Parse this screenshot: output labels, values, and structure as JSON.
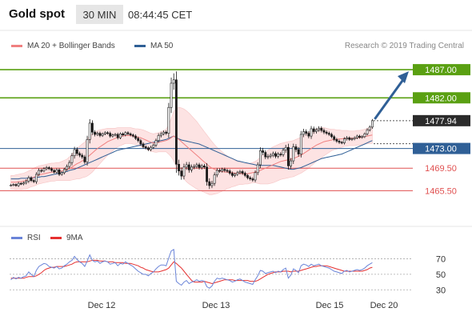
{
  "header": {
    "title": "Gold spot",
    "timeframe": "30 MIN",
    "time": "08:44:45 CET"
  },
  "legend": {
    "ma_bb": "MA 20 + Bollinger Bands",
    "ma50": "MA 50",
    "credit": "Research © 2019 Trading Central"
  },
  "rsi_legend": {
    "rsi": "RSI",
    "ma": "9MA"
  },
  "colors": {
    "candle": "#1a1a1a",
    "bollinger_fill": "#fde3e3",
    "ma20": "#f08080",
    "ma50": "#2f5f96",
    "resistance": "#5aa012",
    "support": "#e05050",
    "pivot": "#2f5f96",
    "last_price": "#2b2b2b",
    "rsi": "#6a84d8",
    "rsi_ma": "#e53030",
    "arrow": "#2f5f96"
  },
  "chart_data": [
    {
      "type": "candlestick",
      "title": "Gold spot",
      "ylim": [
        1461.0,
        1490.0
      ],
      "x_tick_labels": [
        "Dec 12",
        "Dec 13",
        "Dec 15",
        "Dec 20"
      ],
      "close": [
        1466.5,
        1466.6,
        1466.4,
        1466.8,
        1466.7,
        1466.9,
        1467.2,
        1467.8,
        1467.3,
        1467.1,
        1468.4,
        1469.1,
        1469.0,
        1469.4,
        1469.6,
        1469.4,
        1469.1,
        1468.8,
        1469.2,
        1468.4,
        1468.7,
        1469.3,
        1469.8,
        1470.5,
        1471.7,
        1472.8,
        1472.1,
        1471.8,
        1471.5,
        1470.6,
        1474.6,
        1477.5,
        1475.9,
        1475.5,
        1475.7,
        1475.3,
        1475.6,
        1475.8,
        1475.7,
        1475.2,
        1475.4,
        1475.5,
        1474.9,
        1475.6,
        1475.4,
        1475.8,
        1475.6,
        1475.4,
        1475.2,
        1474.8,
        1474.4,
        1473.8,
        1473.3,
        1473.1,
        1472.8,
        1473.2,
        1473.6,
        1474.4,
        1475.3,
        1475.6,
        1475.9,
        1475.7,
        1480.3,
        1484.6,
        1485.2,
        1470.2,
        1469.0,
        1468.1,
        1469.7,
        1470.1,
        1469.2,
        1469.7,
        1469.8,
        1470.1,
        1469.6,
        1469.9,
        1469.7,
        1467.1,
        1466.4,
        1466.8,
        1468.3,
        1469.1,
        1469.0,
        1469.3,
        1469.1,
        1469.0,
        1468.6,
        1468.2,
        1468.4,
        1468.7,
        1468.9,
        1468.6,
        1468.2,
        1467.8,
        1467.6,
        1467.4,
        1468.7,
        1470.1,
        1472.6,
        1472.3,
        1471.5,
        1471.6,
        1471.8,
        1472.1,
        1471.6,
        1472.0,
        1471.9,
        1472.7,
        1473.2,
        1469.9,
        1470.8,
        1473.3,
        1472.8,
        1472.0,
        1475.5,
        1476.0,
        1475.7,
        1475.2,
        1476.5,
        1476.0,
        1476.3,
        1476.6,
        1476.2,
        1475.9,
        1475.7,
        1475.5,
        1475.1,
        1474.6,
        1474.3,
        1474.1,
        1474.0,
        1474.7,
        1474.9,
        1474.6,
        1474.7,
        1474.9,
        1475.2,
        1475.0,
        1475.1,
        1475.6,
        1476.3,
        1476.8,
        1477.94
      ],
      "spread": [
        0.4,
        0.4,
        0.4,
        0.5,
        0.4,
        0.5,
        0.6,
        0.7,
        0.5,
        0.5,
        0.8,
        0.7,
        0.6,
        0.5,
        0.6,
        0.5,
        0.5,
        0.5,
        0.6,
        0.6,
        0.5,
        0.6,
        0.7,
        0.8,
        1.0,
        1.0,
        0.8,
        0.7,
        0.7,
        0.7,
        1.3,
        1.4,
        1.0,
        0.7,
        0.6,
        0.6,
        0.5,
        0.5,
        0.5,
        0.6,
        0.5,
        0.5,
        0.6,
        0.5,
        0.5,
        0.5,
        0.5,
        0.5,
        0.5,
        0.6,
        0.6,
        0.6,
        0.6,
        0.5,
        0.5,
        0.6,
        0.6,
        0.7,
        0.8,
        0.7,
        0.6,
        0.6,
        1.6,
        2.0,
        2.3,
        3.0,
        1.6,
        1.3,
        1.2,
        1.0,
        1.0,
        0.9,
        0.8,
        0.7,
        0.7,
        0.7,
        0.7,
        1.4,
        1.2,
        0.9,
        0.9,
        0.8,
        0.7,
        0.6,
        0.6,
        0.6,
        0.6,
        0.6,
        0.6,
        0.6,
        0.6,
        0.6,
        0.6,
        0.6,
        0.6,
        0.6,
        0.8,
        0.9,
        1.2,
        1.0,
        0.8,
        0.8,
        0.7,
        0.7,
        0.7,
        0.7,
        0.7,
        0.8,
        0.9,
        1.3,
        1.0,
        1.1,
        0.9,
        0.9,
        1.2,
        1.0,
        0.8,
        0.8,
        1.0,
        0.8,
        0.7,
        0.7,
        0.7,
        0.7,
        0.6,
        0.6,
        0.6,
        0.6,
        0.6,
        0.6,
        0.5,
        0.6,
        0.6,
        0.5,
        0.5,
        0.5,
        0.5,
        0.5,
        0.5,
        0.5,
        0.6,
        0.6,
        0.6
      ],
      "ma20": [
        1467.0,
        1467.0,
        1467.0,
        1467.1,
        1467.1,
        1467.2,
        1467.3,
        1467.5,
        1467.7,
        1467.9,
        1468.1,
        1468.3,
        1468.4,
        1468.5,
        1468.6,
        1468.7,
        1468.8,
        1468.8,
        1468.9,
        1468.9,
        1469.0,
        1469.1,
        1469.2,
        1469.4,
        1469.7,
        1470.0,
        1470.3,
        1470.5,
        1470.8,
        1471.0,
        1471.4,
        1471.8,
        1472.2,
        1472.6,
        1473.0,
        1473.3,
        1473.6,
        1473.9,
        1474.2,
        1474.4,
        1474.6,
        1474.8,
        1475.0,
        1475.1,
        1475.2,
        1475.3,
        1475.3,
        1475.3,
        1475.2,
        1475.1,
        1475.0,
        1474.9,
        1474.7,
        1474.5,
        1474.3,
        1474.1,
        1474.0,
        1474.0,
        1474.1,
        1474.2,
        1474.3,
        1474.4,
        1474.6,
        1474.9,
        1475.2,
        1474.9,
        1474.6,
        1474.2,
        1473.8,
        1473.4,
        1473.0,
        1472.6,
        1472.2,
        1471.8,
        1471.4,
        1471.0,
        1470.6,
        1470.2,
        1469.8,
        1469.5,
        1469.3,
        1469.1,
        1469.0,
        1468.9,
        1468.8,
        1468.8,
        1468.7,
        1468.7,
        1468.6,
        1468.6,
        1468.6,
        1468.5,
        1468.5,
        1468.5,
        1468.6,
        1468.7,
        1468.8,
        1468.9,
        1469.1,
        1469.3,
        1469.5,
        1469.7,
        1469.9,
        1470.1,
        1470.3,
        1470.5,
        1470.7,
        1470.8,
        1470.9,
        1471.0,
        1471.1,
        1471.2,
        1471.4,
        1471.6,
        1471.8,
        1472.1,
        1472.4,
        1472.7,
        1473.0,
        1473.3,
        1473.6,
        1473.8,
        1474.0,
        1474.2,
        1474.3,
        1474.4,
        1474.5,
        1474.6,
        1474.6,
        1474.7,
        1474.7,
        1474.8,
        1474.8,
        1474.8,
        1474.8,
        1474.8,
        1474.9,
        1474.9,
        1475.0,
        1475.1,
        1475.2,
        1475.3,
        1475.4
      ],
      "bb_width": [
        1.2,
        1.2,
        1.3,
        1.3,
        1.4,
        1.4,
        1.5,
        1.5,
        1.5,
        1.6,
        1.6,
        1.6,
        1.6,
        1.6,
        1.6,
        1.6,
        1.6,
        1.6,
        1.6,
        1.6,
        1.7,
        1.8,
        1.9,
        2.1,
        2.3,
        2.5,
        2.7,
        2.9,
        3.0,
        3.1,
        3.3,
        3.4,
        3.4,
        3.3,
        3.2,
        3.0,
        2.8,
        2.6,
        2.4,
        2.2,
        2.0,
        1.8,
        1.7,
        1.6,
        1.5,
        1.4,
        1.4,
        1.4,
        1.4,
        1.4,
        1.5,
        1.5,
        1.6,
        1.6,
        1.6,
        1.6,
        1.6,
        1.7,
        1.7,
        1.8,
        1.9,
        2.0,
        2.6,
        3.4,
        4.4,
        5.2,
        5.7,
        6.0,
        6.2,
        6.3,
        6.3,
        6.2,
        6.1,
        6.0,
        5.8,
        5.6,
        5.4,
        5.2,
        5.0,
        4.7,
        4.4,
        4.1,
        3.8,
        3.5,
        3.2,
        2.9,
        2.7,
        2.5,
        2.3,
        2.1,
        2.0,
        1.9,
        1.8,
        1.8,
        1.8,
        1.8,
        1.9,
        2.1,
        2.4,
        2.6,
        2.8,
        3.0,
        3.1,
        3.2,
        3.2,
        3.2,
        3.2,
        3.2,
        3.2,
        3.2,
        3.2,
        3.2,
        3.2,
        3.2,
        3.2,
        3.2,
        3.2,
        3.2,
        3.1,
        3.0,
        2.9,
        2.8,
        2.7,
        2.5,
        2.3,
        2.1,
        1.9,
        1.8,
        1.7,
        1.6,
        1.5,
        1.4,
        1.4,
        1.3,
        1.3,
        1.3,
        1.3,
        1.3,
        1.3,
        1.3,
        1.4,
        1.4,
        1.5
      ],
      "ma50": [
        1467.6,
        1467.6,
        1467.6,
        1467.6,
        1467.7,
        1467.7,
        1467.7,
        1467.8,
        1467.8,
        1467.8,
        1467.9,
        1467.9,
        1468.0,
        1468.0,
        1468.1,
        1468.2,
        1468.3,
        1468.4,
        1468.5,
        1468.6,
        1468.7,
        1468.8,
        1468.9,
        1469.1,
        1469.2,
        1469.3,
        1469.5,
        1469.7,
        1469.9,
        1470.1,
        1470.3,
        1470.5,
        1470.7,
        1470.9,
        1471.1,
        1471.3,
        1471.5,
        1471.7,
        1471.9,
        1472.1,
        1472.3,
        1472.5,
        1472.7,
        1472.8,
        1472.9,
        1473.0,
        1473.1,
        1473.2,
        1473.3,
        1473.4,
        1473.5,
        1473.6,
        1473.7,
        1473.8,
        1473.9,
        1474.0,
        1474.1,
        1474.2,
        1474.3,
        1474.4,
        1474.5,
        1474.6,
        1474.8,
        1475.0,
        1475.2,
        1474.9,
        1474.7,
        1474.5,
        1474.4,
        1474.3,
        1474.2,
        1474.1,
        1474.0,
        1473.9,
        1473.8,
        1473.6,
        1473.4,
        1473.2,
        1473.0,
        1472.8,
        1472.6,
        1472.4,
        1472.2,
        1472.0,
        1471.8,
        1471.6,
        1471.4,
        1471.2,
        1471.0,
        1470.8,
        1470.7,
        1470.6,
        1470.5,
        1470.4,
        1470.3,
        1470.2,
        1470.1,
        1470.0,
        1470.0,
        1470.0,
        1470.0,
        1470.0,
        1470.0,
        1470.0,
        1469.9,
        1469.8,
        1469.7,
        1469.6,
        1469.5,
        1469.4,
        1469.3,
        1469.3,
        1469.4,
        1469.5,
        1469.6,
        1469.8,
        1470.0,
        1470.2,
        1470.4,
        1470.6,
        1470.8,
        1471.0,
        1471.2,
        1471.3,
        1471.4,
        1471.5,
        1471.6,
        1471.7,
        1471.8,
        1471.9,
        1472.0,
        1472.2,
        1472.4,
        1472.6,
        1472.8,
        1473.0,
        1473.2,
        1473.4,
        1473.6,
        1473.8,
        1474.0,
        1474.2,
        1474.4
      ],
      "levels": [
        {
          "label": "1487.00",
          "value": 1487.0,
          "kind": "resistance"
        },
        {
          "label": "1482.00",
          "value": 1482.0,
          "kind": "resistance"
        },
        {
          "label": "1477.94",
          "value": 1477.94,
          "kind": "last"
        },
        {
          "label": "1473.00",
          "value": 1473.0,
          "kind": "pivot"
        },
        {
          "label": "1469.50",
          "value": 1469.5,
          "kind": "support"
        },
        {
          "label": "1465.50",
          "value": 1465.5,
          "kind": "support"
        }
      ],
      "projection": {
        "from": 1477.94,
        "to": 1487.0
      }
    },
    {
      "type": "line",
      "ylim": [
        20,
        90
      ],
      "y_ticks": [
        30,
        50,
        70
      ],
      "series": [
        {
          "name": "RSI",
          "values": [
            43,
            46,
            44,
            46,
            45,
            47,
            48,
            53,
            50,
            47,
            55,
            60,
            62,
            64,
            63,
            60,
            59,
            58,
            60,
            57,
            58,
            61,
            63,
            66,
            68,
            73,
            69,
            66,
            64,
            60,
            67,
            75,
            68,
            66,
            67,
            64,
            66,
            67,
            66,
            63,
            64,
            65,
            61,
            64,
            63,
            66,
            64,
            62,
            60,
            57,
            54,
            52,
            50,
            50,
            48,
            51,
            53,
            57,
            60,
            62,
            62,
            61,
            71,
            80,
            82,
            41,
            38,
            36,
            40,
            42,
            38,
            40,
            41,
            43,
            41,
            42,
            41,
            34,
            32,
            35,
            41,
            45,
            44,
            45,
            44,
            43,
            42,
            40,
            41,
            43,
            44,
            42,
            40,
            39,
            38,
            37,
            43,
            48,
            55,
            54,
            51,
            52,
            53,
            54,
            52,
            54,
            53,
            56,
            58,
            45,
            49,
            57,
            55,
            52,
            61,
            63,
            62,
            60,
            63,
            61,
            62,
            63,
            61,
            60,
            59,
            58,
            56,
            54,
            53,
            52,
            51,
            54,
            55,
            53,
            54,
            55,
            56,
            55,
            56,
            58,
            61,
            63,
            65
          ]
        },
        {
          "name": "9MA",
          "values": [
            45,
            45,
            45,
            45,
            45,
            45,
            46,
            47,
            47,
            47,
            48,
            50,
            52,
            55,
            57,
            58,
            59,
            59,
            60,
            60,
            60,
            60,
            61,
            62,
            63,
            65,
            66,
            66,
            66,
            66,
            66,
            67,
            68,
            68,
            68,
            67,
            67,
            67,
            66,
            66,
            66,
            65,
            65,
            65,
            65,
            64,
            64,
            64,
            63,
            62,
            61,
            59,
            58,
            56,
            55,
            54,
            53,
            53,
            53,
            54,
            55,
            56,
            58,
            62,
            66,
            64,
            61,
            58,
            54,
            50,
            46,
            42,
            40,
            40,
            40,
            40,
            41,
            40,
            39,
            38,
            39,
            40,
            41,
            42,
            43,
            43,
            43,
            43,
            42,
            42,
            42,
            42,
            42,
            42,
            41,
            41,
            41,
            42,
            44,
            46,
            48,
            50,
            51,
            52,
            53,
            53,
            53,
            54,
            54,
            54,
            53,
            54,
            54,
            54,
            55,
            56,
            57,
            58,
            59,
            60,
            60,
            61,
            61,
            61,
            61,
            60,
            59,
            58,
            57,
            56,
            55,
            54,
            54,
            54,
            54,
            54,
            54,
            54,
            54,
            55,
            56,
            58,
            59
          ]
        }
      ]
    }
  ]
}
